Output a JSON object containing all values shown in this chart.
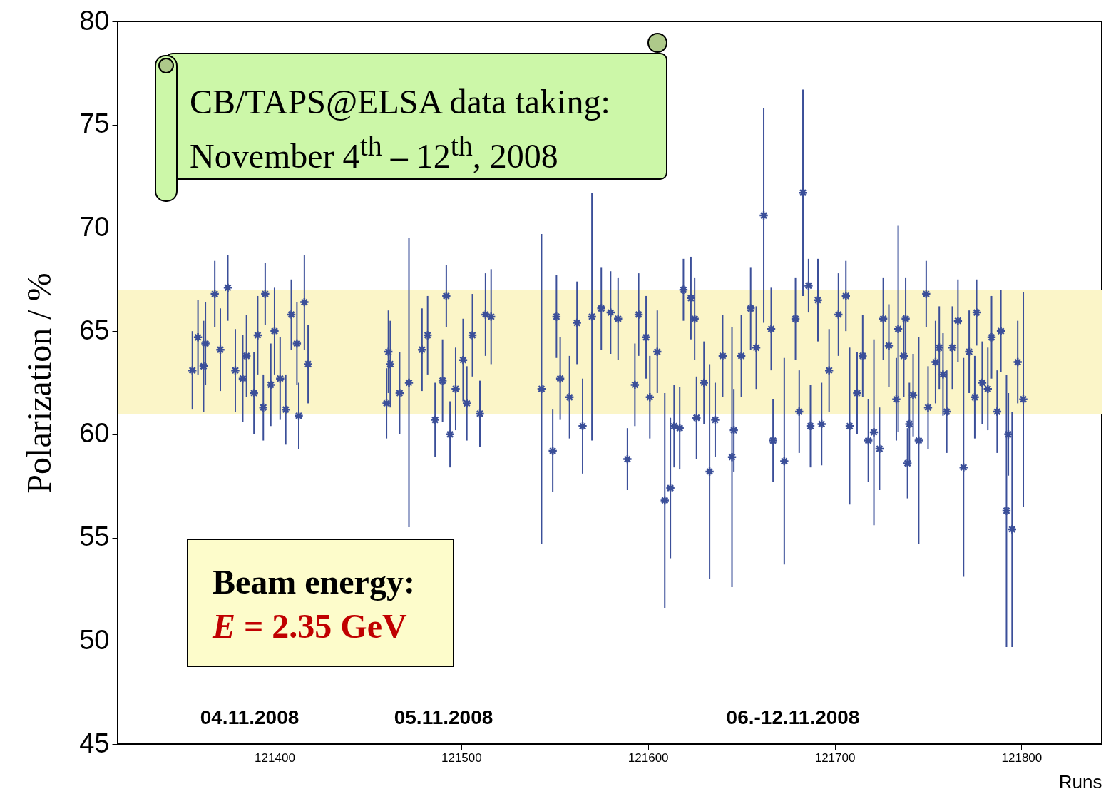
{
  "chart_data": {
    "type": "scatter",
    "xlabel": "Runs",
    "ylabel": "Polarization / %",
    "x": [
      121356,
      121359,
      121362,
      121363,
      121368,
      121371,
      121375,
      121379,
      121383,
      121385,
      121389,
      121391,
      121394,
      121395,
      121398,
      121400,
      121403,
      121406,
      121409,
      121412,
      121413,
      121416,
      121418,
      121460,
      121461,
      121462,
      121467,
      121472,
      121479,
      121482,
      121486,
      121490,
      121492,
      121494,
      121497,
      121501,
      121503,
      121506,
      121510,
      121513,
      121516,
      121543,
      121549,
      121551,
      121553,
      121558,
      121562,
      121565,
      121570,
      121575,
      121580,
      121584,
      121589,
      121593,
      121595,
      121599,
      121601,
      121605,
      121609,
      121612,
      121614,
      121617,
      121619,
      121623,
      121625,
      121626,
      121630,
      121633,
      121636,
      121640,
      121645,
      121646,
      121650,
      121655,
      121658,
      121662,
      121666,
      121667,
      121673,
      121679,
      121681,
      121683,
      121686,
      121687,
      121691,
      121693,
      121697,
      121702,
      121706,
      121708,
      121712,
      121715,
      121718,
      121721,
      121724,
      121726,
      121729,
      121733,
      121734,
      121737,
      121738,
      121739,
      121740,
      121742,
      121745,
      121749,
      121750,
      121754,
      121756,
      121758,
      121760,
      121763,
      121766,
      121769,
      121772,
      121775,
      121776,
      121779,
      121782,
      121784,
      121787,
      121789,
      121792,
      121793,
      121795,
      121798,
      121801
    ],
    "values": [
      63.1,
      64.7,
      63.3,
      64.4,
      66.8,
      64.1,
      67.1,
      63.1,
      62.7,
      63.8,
      62.0,
      64.8,
      61.3,
      66.8,
      62.4,
      65.0,
      62.7,
      61.2,
      65.8,
      64.4,
      60.9,
      66.4,
      63.4,
      61.5,
      64.0,
      63.4,
      62.0,
      62.5,
      64.1,
      64.8,
      60.7,
      62.6,
      66.7,
      60.0,
      62.2,
      63.6,
      61.5,
      64.8,
      61.0,
      65.8,
      65.7,
      62.2,
      59.2,
      65.7,
      62.7,
      61.8,
      65.4,
      60.4,
      65.7,
      66.1,
      65.9,
      65.6,
      58.8,
      62.4,
      65.8,
      64.7,
      61.8,
      64.0,
      56.8,
      57.4,
      60.4,
      60.3,
      67.0,
      66.6,
      65.6,
      60.8,
      62.5,
      58.2,
      60.7,
      63.8,
      58.9,
      60.2,
      63.8,
      66.1,
      64.2,
      70.6,
      65.1,
      59.7,
      58.7,
      65.6,
      61.1,
      71.7,
      67.2,
      60.4,
      66.5,
      60.5,
      63.1,
      65.8,
      66.7,
      60.4,
      62.0,
      63.8,
      59.7,
      60.1,
      59.3,
      65.6,
      64.3,
      61.7,
      65.1,
      63.8,
      65.6,
      58.6,
      60.5,
      61.9,
      59.7,
      66.8,
      61.3,
      63.5,
      64.2,
      62.9,
      61.1,
      64.2,
      65.5,
      58.4,
      64.0,
      61.8,
      65.9,
      62.5,
      62.2,
      64.7,
      61.1,
      65.0,
      56.3,
      60.0,
      55.4,
      63.5,
      61.7
    ],
    "errors": [
      1.9,
      1.8,
      2.2,
      2.0,
      1.6,
      2.0,
      1.6,
      2.0,
      2.1,
      2.0,
      2.0,
      1.9,
      1.6,
      1.5,
      2.0,
      2.1,
      2.0,
      1.7,
      1.7,
      2.0,
      1.6,
      2.3,
      1.9,
      1.7,
      2.0,
      2.1,
      2.0,
      7.0,
      2.0,
      1.9,
      1.8,
      2.0,
      1.5,
      1.6,
      2.0,
      2.0,
      1.8,
      2.0,
      1.6,
      2.0,
      2.3,
      7.5,
      2.0,
      2.0,
      2.0,
      2.0,
      2.0,
      2.3,
      6.0,
      2.0,
      2.0,
      2.0,
      1.5,
      2.0,
      2.0,
      2.0,
      2.0,
      2.0,
      5.2,
      3.4,
      2.0,
      2.0,
      1.5,
      2.0,
      2.0,
      2.0,
      2.0,
      5.2,
      1.8,
      2.0,
      6.3,
      2.0,
      2.0,
      2.0,
      2.0,
      5.2,
      2.0,
      2.0,
      5.0,
      2.0,
      2.0,
      5.0,
      1.3,
      2.0,
      2.0,
      2.0,
      2.0,
      2.0,
      1.7,
      3.8,
      2.0,
      2.0,
      2.0,
      4.5,
      2.0,
      2.0,
      2.0,
      2.0,
      5.0,
      2.0,
      2.0,
      1.7,
      2.0,
      2.0,
      5.0,
      1.6,
      2.0,
      2.0,
      2.0,
      2.0,
      2.0,
      2.0,
      2.0,
      5.3,
      2.0,
      2.0,
      1.6,
      2.0,
      2.0,
      2.0,
      2.0,
      2.0,
      6.6,
      2.0,
      5.7,
      2.0,
      5.2
    ],
    "color": "#3b4f99",
    "marker": "cross",
    "xlim": [
      121316,
      121843
    ],
    "xticks": [
      121400,
      121500,
      121600,
      121700,
      121800
    ],
    "ylim": [
      45,
      80
    ],
    "yticks": [
      45,
      50,
      55,
      60,
      65,
      70,
      75,
      80
    ],
    "grid": false,
    "bands": [
      {
        "axis": "y",
        "from": 61,
        "to": 67,
        "color": "#fbf5c8"
      }
    ],
    "annotations": [
      "CB/TAPS@ELSA data taking: November 4$^{th}$ – 12$^{th}$, 2008",
      "Beam energy:",
      "E = 2.35 GeV",
      "04.11.2008",
      "05.11.2008",
      "06.-12.11.2008"
    ]
  }
}
